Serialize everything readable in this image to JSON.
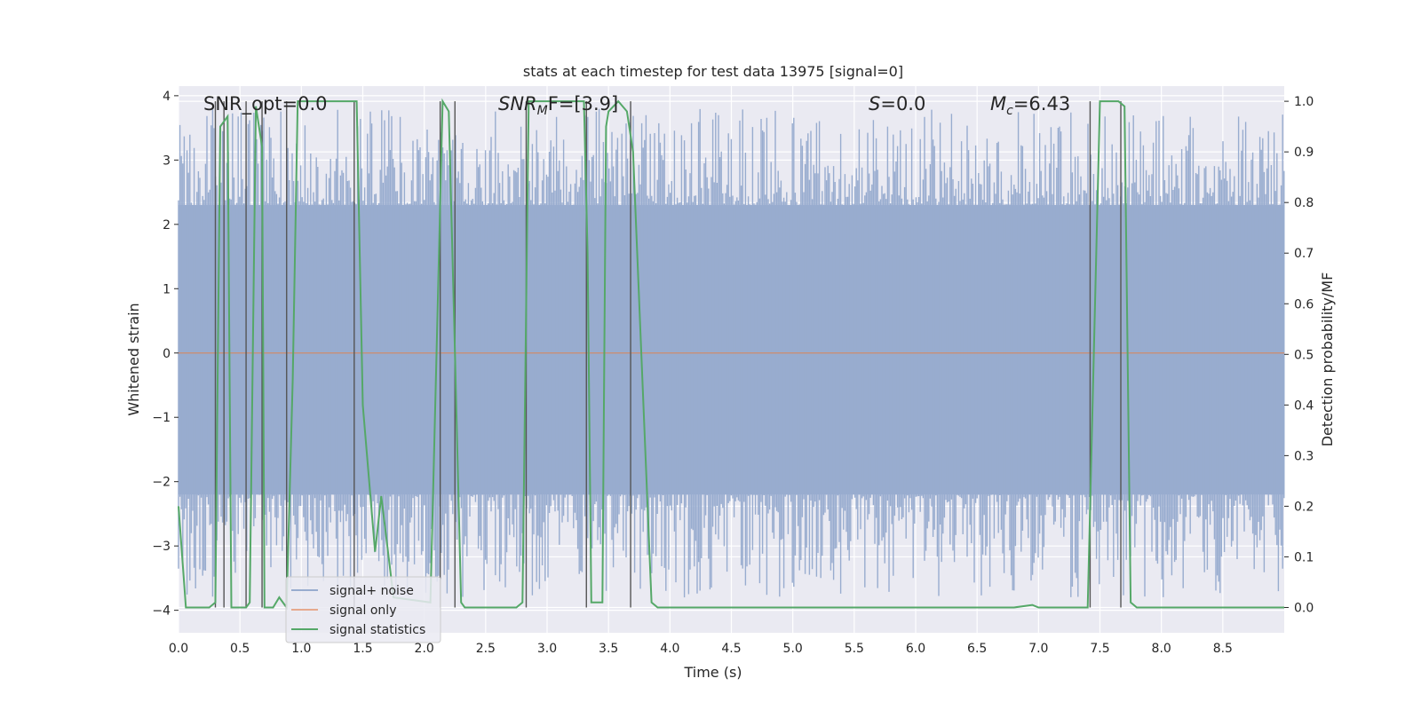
{
  "chart_data": {
    "type": "line",
    "title": "stats at each timestep for test data 13975 [signal=0]",
    "xlabel": "Time (s)",
    "ylabel": "Whitened strain",
    "ylabel_right": "Detection probability/MF",
    "xlim": [
      0.0,
      9.0
    ],
    "ylim": [
      -4.35,
      4.15
    ],
    "ylim_right": [
      -0.05,
      1.03
    ],
    "xticks": [
      "0.0",
      "0.5",
      "1.0",
      "1.5",
      "2.0",
      "2.5",
      "3.0",
      "3.5",
      "4.0",
      "4.5",
      "5.0",
      "5.5",
      "6.0",
      "6.5",
      "7.0",
      "7.5",
      "8.0",
      "8.5"
    ],
    "yticks": [
      "4",
      "3",
      "2",
      "1",
      "0",
      "−1",
      "−2",
      "−3",
      "−4"
    ],
    "yticks_right": [
      "1.0",
      "0.9",
      "0.8",
      "0.7",
      "0.6",
      "0.5",
      "0.4",
      "0.3",
      "0.2",
      "0.1",
      "0.0"
    ],
    "annotations": {
      "snr_opt": "SNR_opt=0.0",
      "snr_mf_main": "SNR",
      "snr_mf_sub": "M",
      "snr_mf_tail": "F=[3.9]",
      "s_var": "S",
      "s_value": "=0.0",
      "mc_var": "M",
      "mc_sub": "c",
      "mc_value": "=6.43"
    },
    "legend": {
      "position": "lower-left",
      "entries": [
        "signal+ noise",
        "signal only",
        "signal statistics"
      ]
    },
    "series": [
      {
        "name": "signal+ noise",
        "color": "#4c72b0",
        "envelope_upper": 2.3,
        "envelope_lower": -2.2,
        "peak_max": 3.8,
        "peak_min": -3.8
      },
      {
        "name": "signal only",
        "color": "#dd8452",
        "value": 0.0
      },
      {
        "name": "signal statistics",
        "color": "#55a868",
        "x": [
          0.0,
          0.06,
          0.25,
          0.3,
          0.32,
          0.34,
          0.4,
          0.43,
          0.55,
          0.58,
          0.63,
          0.68,
          0.7,
          0.77,
          0.82,
          0.88,
          0.93,
          0.97,
          1.0,
          1.45,
          1.5,
          1.6,
          1.65,
          1.75,
          2.05,
          2.1,
          2.15,
          2.2,
          2.25,
          2.3,
          2.33,
          2.4,
          2.75,
          2.8,
          2.85,
          2.9,
          3.3,
          3.33,
          3.36,
          3.45,
          3.48,
          3.5,
          3.58,
          3.65,
          3.7,
          3.85,
          3.9,
          4.0,
          6.8,
          6.95,
          7.0,
          7.4,
          7.5,
          7.65,
          7.7,
          7.75,
          7.8,
          9.0
        ],
        "y": [
          0.2,
          0.0,
          0.0,
          0.01,
          0.5,
          0.95,
          0.97,
          0.0,
          0.0,
          0.01,
          0.99,
          0.91,
          0.0,
          0.0,
          0.02,
          0.0,
          0.45,
          1.0,
          1.0,
          1.0,
          0.4,
          0.11,
          0.22,
          0.02,
          0.01,
          0.5,
          1.0,
          0.98,
          0.5,
          0.01,
          0.0,
          0.0,
          0.0,
          0.01,
          1.0,
          1.0,
          1.0,
          0.7,
          0.01,
          0.01,
          0.95,
          0.98,
          1.0,
          0.98,
          0.9,
          0.01,
          0.0,
          0.0,
          0.0,
          0.005,
          0.0,
          0.0,
          1.0,
          1.0,
          0.99,
          0.01,
          0.0,
          0.0
        ]
      }
    ],
    "vertical_markers": [
      0.3,
      0.37,
      0.55,
      0.68,
      0.88,
      1.43,
      2.13,
      2.25,
      2.83,
      3.32,
      3.68,
      7.42,
      7.67
    ]
  },
  "colors": {
    "plot_background": "#eaeaf2",
    "grid": "#ffffff",
    "noise_fill": "#98accf",
    "marker_line": "#555555"
  }
}
